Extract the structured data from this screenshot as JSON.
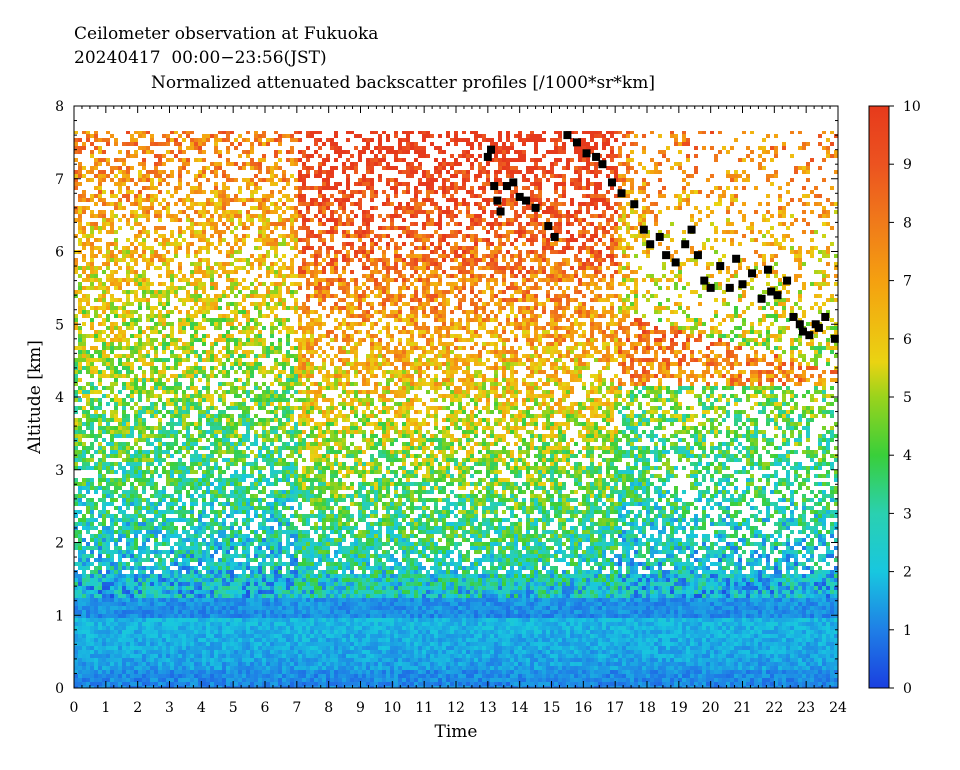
{
  "header": {
    "line1": "Ceilometer observation at Fukuoka",
    "line2": "20240417  00:00−23:56(JST)",
    "line3": "Normalized attenuated backscatter profiles [/1000*sr*km]"
  },
  "chart_data": {
    "type": "heatmap",
    "xlabel": "Time",
    "ylabel": "Altitude [km]",
    "xlim": [
      0,
      24
    ],
    "ylim": [
      0,
      8
    ],
    "x_ticks": [
      0,
      1,
      2,
      3,
      4,
      5,
      6,
      7,
      8,
      9,
      10,
      11,
      12,
      13,
      14,
      15,
      16,
      17,
      18,
      19,
      20,
      21,
      22,
      23,
      24
    ],
    "y_ticks": [
      0,
      1,
      2,
      3,
      4,
      5,
      6,
      7,
      8
    ],
    "colorbar": {
      "range": [
        0,
        10
      ],
      "ticks": [
        0,
        1,
        2,
        3,
        4,
        5,
        6,
        7,
        8,
        9,
        10
      ],
      "stops": [
        {
          "v": 0,
          "c": "#1a3fe0"
        },
        {
          "v": 1,
          "c": "#1f7fe6"
        },
        {
          "v": 2,
          "c": "#18c7df"
        },
        {
          "v": 3,
          "c": "#2ad0b0"
        },
        {
          "v": 4,
          "c": "#39cf3a"
        },
        {
          "v": 5,
          "c": "#9ad31c"
        },
        {
          "v": 5.6,
          "c": "#ead312"
        },
        {
          "v": 7,
          "c": "#f5a010"
        },
        {
          "v": 8,
          "c": "#f07a1a"
        },
        {
          "v": 9,
          "c": "#ec5320"
        },
        {
          "v": 10,
          "c": "#e63a1c"
        }
      ]
    },
    "max_altitude_observed_km": 7.67,
    "cloud_base_marker_color": "#000000",
    "cloud_base_points": [
      {
        "t": 13.0,
        "z": 7.3
      },
      {
        "t": 13.1,
        "z": 7.4
      },
      {
        "t": 13.2,
        "z": 6.9
      },
      {
        "t": 13.3,
        "z": 6.7
      },
      {
        "t": 13.4,
        "z": 6.55
      },
      {
        "t": 13.6,
        "z": 6.9
      },
      {
        "t": 13.8,
        "z": 6.95
      },
      {
        "t": 14.0,
        "z": 6.75
      },
      {
        "t": 14.2,
        "z": 6.7
      },
      {
        "t": 14.5,
        "z": 6.6
      },
      {
        "t": 14.9,
        "z": 6.35
      },
      {
        "t": 15.1,
        "z": 6.2
      },
      {
        "t": 15.5,
        "z": 7.6
      },
      {
        "t": 15.8,
        "z": 7.5
      },
      {
        "t": 16.1,
        "z": 7.35
      },
      {
        "t": 16.4,
        "z": 7.3
      },
      {
        "t": 16.6,
        "z": 7.2
      },
      {
        "t": 16.9,
        "z": 6.95
      },
      {
        "t": 17.2,
        "z": 6.8
      },
      {
        "t": 17.6,
        "z": 6.65
      },
      {
        "t": 17.9,
        "z": 6.3
      },
      {
        "t": 18.1,
        "z": 6.1
      },
      {
        "t": 18.4,
        "z": 6.2
      },
      {
        "t": 18.6,
        "z": 5.95
      },
      {
        "t": 18.9,
        "z": 5.85
      },
      {
        "t": 19.2,
        "z": 6.1
      },
      {
        "t": 19.4,
        "z": 6.3
      },
      {
        "t": 19.6,
        "z": 5.95
      },
      {
        "t": 19.8,
        "z": 5.6
      },
      {
        "t": 20.0,
        "z": 5.5
      },
      {
        "t": 20.3,
        "z": 5.8
      },
      {
        "t": 20.6,
        "z": 5.5
      },
      {
        "t": 20.8,
        "z": 5.9
      },
      {
        "t": 21.0,
        "z": 5.55
      },
      {
        "t": 21.3,
        "z": 5.7
      },
      {
        "t": 21.6,
        "z": 5.35
      },
      {
        "t": 21.8,
        "z": 5.75
      },
      {
        "t": 22.1,
        "z": 5.4
      },
      {
        "t": 22.4,
        "z": 5.6
      },
      {
        "t": 22.6,
        "z": 5.1
      },
      {
        "t": 22.8,
        "z": 5.0
      },
      {
        "t": 23.1,
        "z": 4.85
      },
      {
        "t": 23.4,
        "z": 4.95
      },
      {
        "t": 23.6,
        "z": 5.1
      },
      {
        "t": 23.9,
        "z": 4.8
      },
      {
        "t": 22.9,
        "z": 4.9
      },
      {
        "t": 23.3,
        "z": 5.0
      },
      {
        "t": 21.9,
        "z": 5.45
      }
    ]
  }
}
